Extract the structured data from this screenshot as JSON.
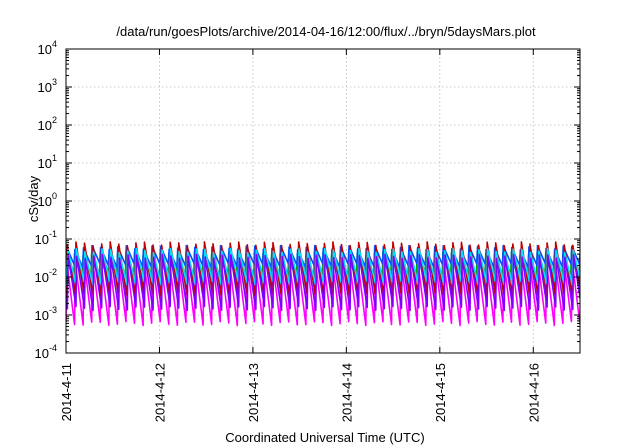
{
  "chart_data": {
    "type": "line",
    "title": "/data/run/goesPlots/archive/2014-04-16/12:00/flux/../bryn/5daysMars.plot",
    "xlabel": "Coordinated Universal Time (UTC)",
    "ylabel": "cSv/day",
    "y_scale": "log",
    "ylim": [
      0.0001,
      10000
    ],
    "xlim": [
      "2014-04-11T00:00",
      "2014-04-16T12:00"
    ],
    "grid": true,
    "legend": "none",
    "x_ticks": [
      "2014-4-11",
      "2014-4-12",
      "2014-4-13",
      "2014-4-14",
      "2014-4-15",
      "2014-4-16"
    ],
    "y_ticks": [
      {
        "base": "10",
        "exp": "-4",
        "value": 0.0001
      },
      {
        "base": "10",
        "exp": "-3",
        "value": 0.001
      },
      {
        "base": "10",
        "exp": "-2",
        "value": 0.01
      },
      {
        "base": "10",
        "exp": "-1",
        "value": 0.1
      },
      {
        "base": "10",
        "exp": "0",
        "value": 1
      },
      {
        "base": "10",
        "exp": "1",
        "value": 10
      },
      {
        "base": "10",
        "exp": "2",
        "value": 100
      },
      {
        "base": "10",
        "exp": "3",
        "value": 1000
      },
      {
        "base": "10",
        "exp": "4",
        "value": 10000
      }
    ],
    "pattern": {
      "period_hours": 2.2,
      "note_hidden": true
    },
    "series": [
      {
        "color": "#00a000",
        "peak": 0.042,
        "trough": 0.011
      },
      {
        "color": "#0050ff",
        "peak": 0.06,
        "trough": 0.02
      },
      {
        "color": "#ff00ff",
        "peak": 0.028,
        "trough": 0.0006
      },
      {
        "color": "#00c0c0",
        "peak": 0.03,
        "trough": 0.008
      },
      {
        "color": "#c00000",
        "peak": 0.075,
        "trough": 0.0035
      },
      {
        "color": "#00e0ff",
        "peak": 0.05,
        "trough": 0.007
      },
      {
        "color": "#8000ff",
        "peak": 0.035,
        "trough": 0.0015
      }
    ]
  }
}
